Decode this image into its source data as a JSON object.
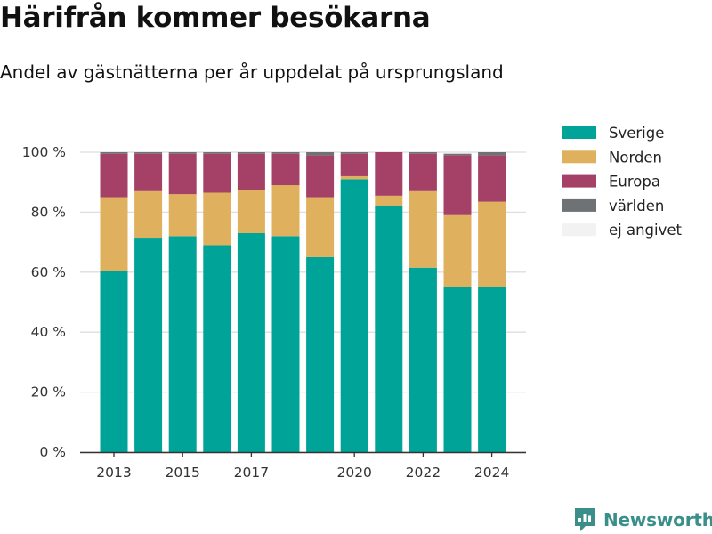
{
  "title": "Härifrån kommer besökarna",
  "subtitle": "Andel av gästnätterna per år uppdelat på ursprungsland",
  "logo_text": "Newsworthy",
  "chart_data": {
    "type": "bar",
    "stacked": true,
    "categories": [
      2013,
      2014,
      2015,
      2016,
      2017,
      2018,
      2019,
      2020,
      2021,
      2022,
      2023,
      2024
    ],
    "x_tick_labels": [
      "2013",
      "2015",
      "2017",
      "2020",
      "2022",
      "2024"
    ],
    "y_tick_labels": [
      "0 %",
      "20 %",
      "40 %",
      "60 %",
      "80 %",
      "100 %"
    ],
    "ylim": [
      0,
      100
    ],
    "y_ticks": [
      0,
      20,
      40,
      60,
      80,
      100
    ],
    "grid": true,
    "legend_position": "right",
    "series": [
      {
        "name": "Sverige",
        "color": "#00a398",
        "values": [
          60.5,
          71.5,
          72,
          69,
          73,
          72,
          65,
          91,
          82,
          61.5,
          55,
          55
        ]
      },
      {
        "name": "Norden",
        "color": "#dfb05d",
        "values": [
          24.5,
          15.5,
          14,
          17.5,
          14.5,
          17,
          20,
          1,
          3.5,
          25.5,
          24,
          28.5
        ]
      },
      {
        "name": "Europa",
        "color": "#a54167",
        "values": [
          14.5,
          12.5,
          13.5,
          13,
          12,
          10.5,
          14,
          7.5,
          14.5,
          12.5,
          20,
          15.5
        ]
      },
      {
        "name": "världen",
        "color": "#6f7275",
        "values": [
          0.5,
          0.5,
          0.5,
          0.5,
          0.5,
          0.5,
          1,
          0.5,
          0,
          0.5,
          0.5,
          1
        ]
      },
      {
        "name": "ej angivet",
        "color": "#f2f2f2",
        "values": [
          0,
          0,
          0,
          0,
          0,
          0,
          0,
          0,
          0,
          0,
          0,
          0
        ]
      }
    ]
  }
}
